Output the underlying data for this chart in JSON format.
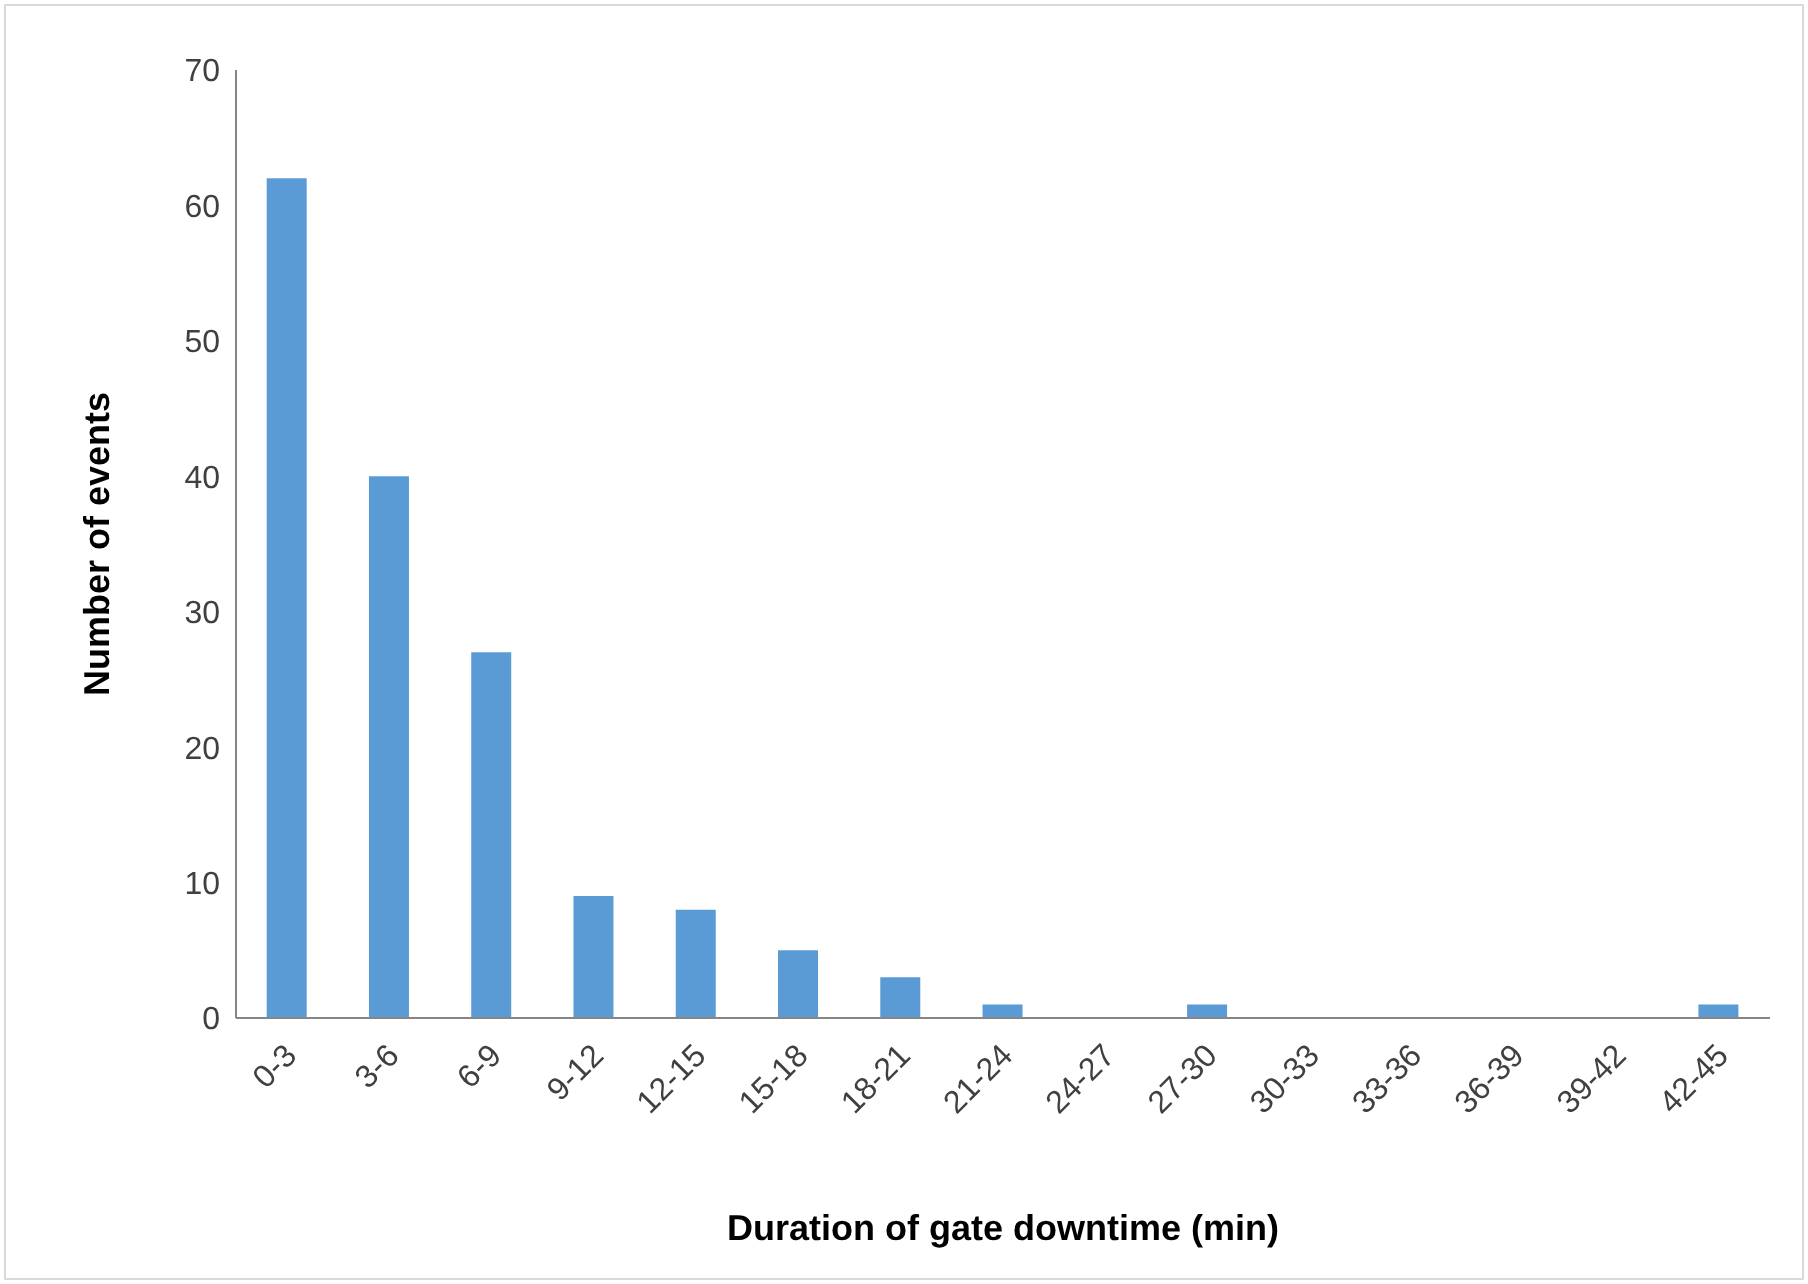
{
  "chart_data": {
    "type": "bar",
    "xlabel": "Duration of gate downtime (min)",
    "ylabel": "Number of events",
    "categories": [
      "0-3",
      "3-6",
      "6-9",
      "9-12",
      "12-15",
      "15-18",
      "18-21",
      "21-24",
      "24-27",
      "27-30",
      "30-33",
      "33-36",
      "36-39",
      "39-42",
      "42-45"
    ],
    "values": [
      62,
      40,
      27,
      9,
      8,
      5,
      3,
      1,
      0,
      1,
      0,
      0,
      0,
      0,
      1
    ],
    "color": "#5b9bd5",
    "ylim": [
      0,
      70
    ],
    "yticks": [
      0,
      10,
      20,
      30,
      40,
      50,
      60,
      70
    ],
    "grid": false
  }
}
